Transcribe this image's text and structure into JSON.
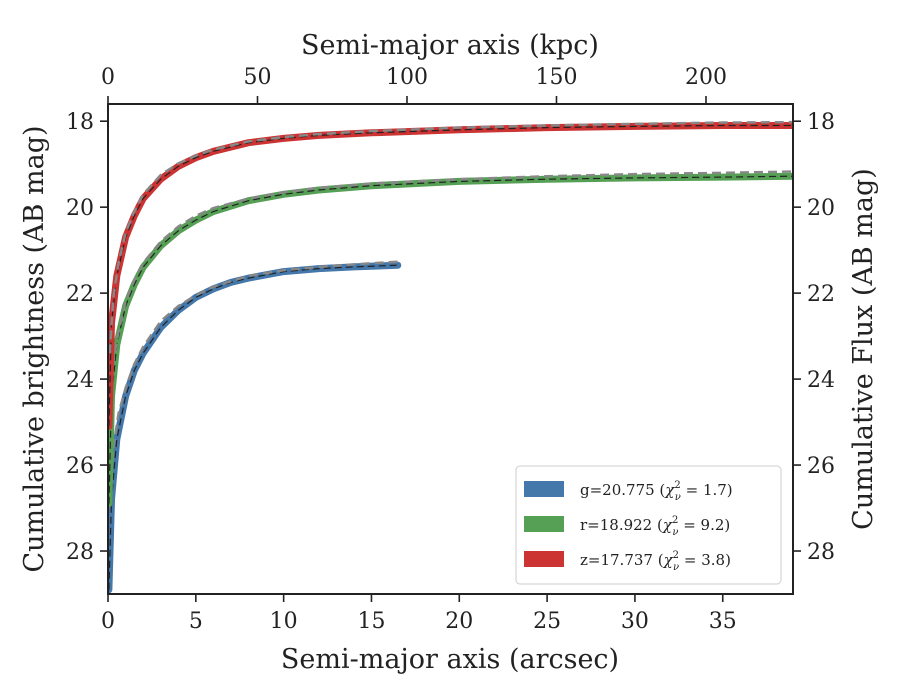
{
  "chart_data": {
    "type": "line",
    "xlabel": "Semi-major axis (arcsec)",
    "ylabel": "Cumulative brightness (AB mag)",
    "top_xlabel": "Semi-major axis (kpc)",
    "right_ylabel": "Cumulative Flux (AB mag)",
    "xlim": [
      0,
      39
    ],
    "ylim": [
      29,
      17.6
    ],
    "top_xlim": [
      0,
      229.1
    ],
    "y_inverted": true,
    "grid": false,
    "legend_position": "lower-right",
    "x_ticks": [
      "0",
      "5",
      "10",
      "15",
      "20",
      "25",
      "30",
      "35"
    ],
    "x_tick_values": [
      0,
      5,
      10,
      15,
      20,
      25,
      30,
      35
    ],
    "top_x_ticks": [
      "0",
      "50",
      "100",
      "150",
      "200"
    ],
    "top_x_tick_values": [
      0,
      50,
      100,
      150,
      200
    ],
    "y_ticks": [
      "18",
      "20",
      "22",
      "24",
      "26",
      "28"
    ],
    "y_tick_values": [
      18,
      20,
      22,
      24,
      26,
      28
    ],
    "series": [
      {
        "name": "g=20.775",
        "chi2": "1.7",
        "color": "#4477aa",
        "x": [
          0.05,
          0.2,
          0.5,
          1.0,
          1.5,
          2.0,
          3.0,
          4.0,
          5.0,
          6.0,
          7.0,
          8.0,
          10.0,
          12.0,
          14.0,
          16.5
        ],
        "y": [
          28.9,
          26.8,
          25.4,
          24.4,
          23.8,
          23.4,
          22.8,
          22.4,
          22.1,
          21.9,
          21.75,
          21.65,
          21.5,
          21.43,
          21.39,
          21.35
        ],
        "model_x": [
          0.1,
          0.3,
          0.6,
          1.0,
          1.5,
          2.0,
          3.0,
          4.0,
          5.0,
          6.0,
          8.0,
          10.0,
          12.0,
          14.0,
          16.5
        ],
        "model_y": [
          26.9,
          25.6,
          24.8,
          24.2,
          23.65,
          23.25,
          22.65,
          22.3,
          22.05,
          21.85,
          21.6,
          21.47,
          21.39,
          21.33,
          21.27
        ]
      },
      {
        "name": "r=18.922",
        "chi2": "9.2",
        "color": "#55a055",
        "x": [
          0.05,
          0.2,
          0.5,
          1.0,
          1.5,
          2.0,
          3.0,
          4.0,
          5.0,
          6.0,
          8.0,
          10.0,
          12.0,
          15.0,
          20.0,
          25.0,
          30.0,
          35.0,
          39.0
        ],
        "y": [
          26.9,
          24.4,
          23.2,
          22.3,
          21.8,
          21.4,
          20.9,
          20.55,
          20.3,
          20.1,
          19.85,
          19.7,
          19.6,
          19.5,
          19.4,
          19.35,
          19.32,
          19.3,
          19.28
        ],
        "model_x": [
          0.1,
          0.3,
          0.6,
          1.0,
          1.5,
          2.0,
          3.0,
          4.0,
          5.0,
          6.0,
          8.0,
          10.0,
          12.0,
          15.0,
          20.0,
          25.0,
          30.0,
          35.0,
          39.0
        ],
        "model_y": [
          25.0,
          23.6,
          22.9,
          22.2,
          21.7,
          21.3,
          20.8,
          20.45,
          20.2,
          20.02,
          19.8,
          19.65,
          19.55,
          19.45,
          19.35,
          19.28,
          19.23,
          19.2,
          19.17
        ]
      },
      {
        "name": "z=17.737",
        "chi2": "3.8",
        "color": "#cc3333",
        "x": [
          0.05,
          0.2,
          0.5,
          1.0,
          1.5,
          2.0,
          3.0,
          4.0,
          5.0,
          6.0,
          8.0,
          10.0,
          12.0,
          15.0,
          20.0,
          25.0,
          30.0,
          35.0,
          39.0
        ],
        "y": [
          25.1,
          22.7,
          21.6,
          20.7,
          20.2,
          19.8,
          19.35,
          19.05,
          18.85,
          18.7,
          18.5,
          18.4,
          18.33,
          18.27,
          18.2,
          18.15,
          18.12,
          18.1,
          18.1
        ],
        "model_x": [
          0.1,
          0.3,
          0.6,
          1.0,
          1.5,
          2.0,
          3.0,
          4.0,
          5.0,
          6.0,
          8.0,
          10.0,
          12.0,
          15.0,
          20.0,
          25.0,
          30.0,
          35.0,
          39.0
        ],
        "model_y": [
          23.4,
          22.1,
          21.3,
          20.6,
          20.1,
          19.7,
          19.25,
          18.98,
          18.8,
          18.66,
          18.47,
          18.37,
          18.3,
          18.23,
          18.15,
          18.1,
          18.06,
          18.03,
          18.02
        ]
      }
    ]
  }
}
